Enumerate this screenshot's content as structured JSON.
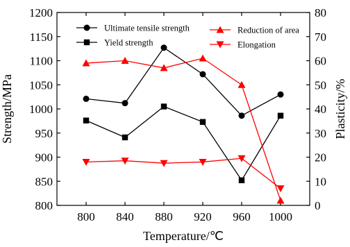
{
  "chart_data": {
    "type": "line",
    "xlabel": "Temperature/℃",
    "ylabel_left": "Strength/MPa",
    "ylabel_right": "Plasticity/%",
    "x": [
      800,
      840,
      880,
      920,
      960,
      1000
    ],
    "xticks": [
      "800",
      "840",
      "880",
      "920",
      "960",
      "1000"
    ],
    "xlim": [
      770,
      1030
    ],
    "ylim_left": [
      800,
      1200
    ],
    "yticks_left": [
      "800",
      "850",
      "900",
      "950",
      "1000",
      "1050",
      "1100",
      "1150",
      "1200"
    ],
    "ylim_right": [
      0,
      80
    ],
    "yticks_right": [
      "0",
      "10",
      "20",
      "30",
      "40",
      "50",
      "60",
      "70",
      "80"
    ],
    "grid": false,
    "legend_placement": "top",
    "series": [
      {
        "name": "Ultimate tensile strength",
        "axis": "left",
        "color": "#000000",
        "marker": "circle",
        "values": [
          1021,
          1012,
          1127,
          1072,
          986,
          1030
        ]
      },
      {
        "name": "Yield strength",
        "axis": "left",
        "color": "#000000",
        "marker": "square",
        "values": [
          976,
          941,
          1005,
          973,
          852,
          986
        ]
      },
      {
        "name": "Reduction of area",
        "axis": "right",
        "color": "#ff0000",
        "marker": "triangle-up",
        "values": [
          59,
          60,
          57,
          61,
          50,
          2
        ]
      },
      {
        "name": "Elongation",
        "axis": "right",
        "color": "#ff0000",
        "marker": "triangle-down",
        "values": [
          18,
          18.5,
          17.5,
          18,
          19.5,
          7
        ]
      }
    ]
  }
}
